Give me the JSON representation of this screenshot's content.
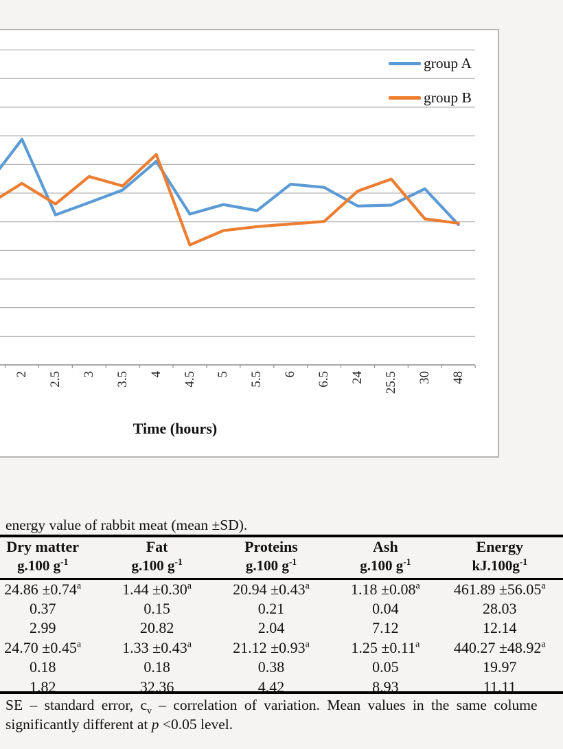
{
  "chart_data": {
    "type": "line",
    "title": "",
    "xlabel": "Time (hours)",
    "ylabel": "",
    "categories": [
      "2",
      "2.5",
      "3",
      "3.5",
      "4",
      "4.5",
      "5",
      "5.5",
      "6",
      "6.5",
      "24",
      "25.5",
      "30",
      "48"
    ],
    "series": [
      {
        "name": "group A",
        "color": "#5B9BD5",
        "lead_in": 6.34,
        "values": [
          7.88,
          5.24,
          5.67,
          6.11,
          7.11,
          5.27,
          5.6,
          5.39,
          6.31,
          6.2,
          5.55,
          5.58,
          6.15,
          4.9
        ]
      },
      {
        "name": "group B",
        "color": "#ED7D31",
        "lead_in": 5.61,
        "values": [
          6.34,
          5.62,
          6.58,
          6.25,
          7.35,
          4.19,
          4.69,
          4.83,
          4.92,
          5.01,
          6.07,
          6.49,
          5.1,
          4.95
        ]
      }
    ],
    "y_axis_note": "y-axis tick labels are cropped out of the image; values expressed in gridline units (0 = bottom axis line, 1 per horizontal gridline)",
    "ylim": [
      0,
      11
    ],
    "grid": true,
    "legend_position": "top-right"
  },
  "chart": {
    "x_axis": {
      "title": "Time (hours)"
    }
  },
  "table": {
    "caption": "energy value of rabbit meat (mean ±SD).",
    "headers": [
      "Dry matter",
      "Fat",
      "Proteins",
      "Ash",
      "Energy"
    ],
    "units": [
      "g.100 g^-1",
      "g.100 g^-1",
      "g.100 g^-1",
      "g.100 g^-1",
      "kJ.100g^-1"
    ],
    "rows": [
      [
        "24.86 ±0.74^a",
        "1.44 ±0.30^a",
        "20.94 ±0.43^a",
        "1.18 ±0.08^a",
        "461.89 ±56.05^a"
      ],
      [
        "0.37",
        "0.15",
        "0.21",
        "0.04",
        "28.03"
      ],
      [
        "2.99",
        "20.82",
        "2.04",
        "7.12",
        "12.14"
      ],
      [
        "24.70 ±0.45^a",
        "1.33 ±0.43^a",
        "21.12 ±0.93^a",
        "1.25 ±0.11^a",
        "440.27 ±48.92^a"
      ],
      [
        "0.18",
        "0.18",
        "0.38",
        "0.05",
        "19.97"
      ],
      [
        "1.82",
        "32.36",
        "4.42",
        "8.93",
        "11.11"
      ]
    ],
    "footnotes": [
      "SE – standard error, c~v~ – correlation of variation. Mean values in the same colume",
      "significantly different at *p* <0.05 level."
    ]
  },
  "colors": {
    "page_background": "#f5f4f2",
    "panel_background": "#ffffff",
    "panel_border": "#b3b3b3",
    "gridline": "#a6a6a6",
    "axis_line": "#8c8c8c",
    "text": "#111111"
  }
}
